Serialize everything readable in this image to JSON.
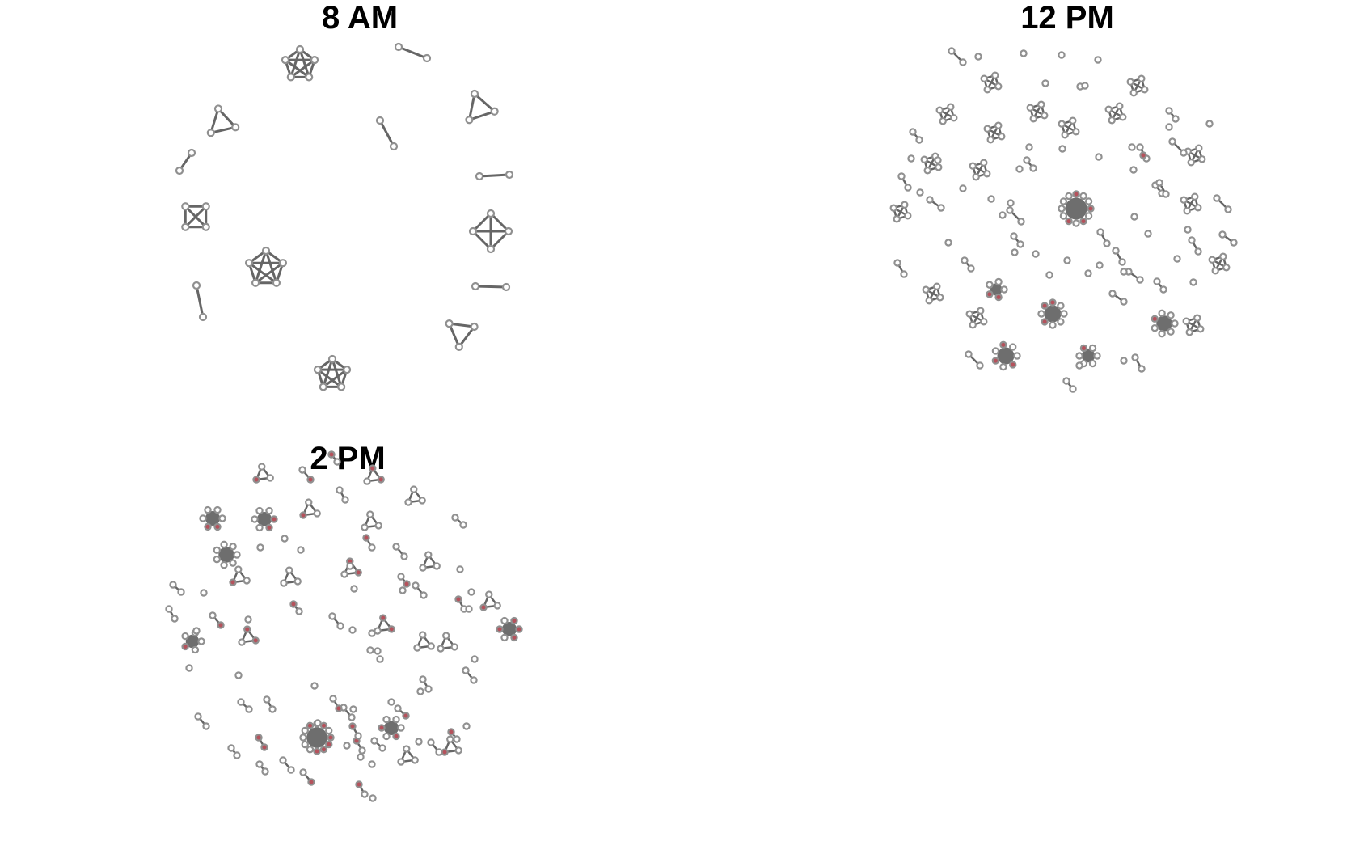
{
  "panels": [
    {
      "title": "8 AM"
    },
    {
      "title": "12 PM"
    },
    {
      "title": "2 PM"
    }
  ],
  "colors": {
    "edge": "#666666",
    "node_stroke": "#909090",
    "node_fill": "#ffffff",
    "infected_fill": "#b5525c",
    "cluster_fill": "#6e6e6e"
  }
}
